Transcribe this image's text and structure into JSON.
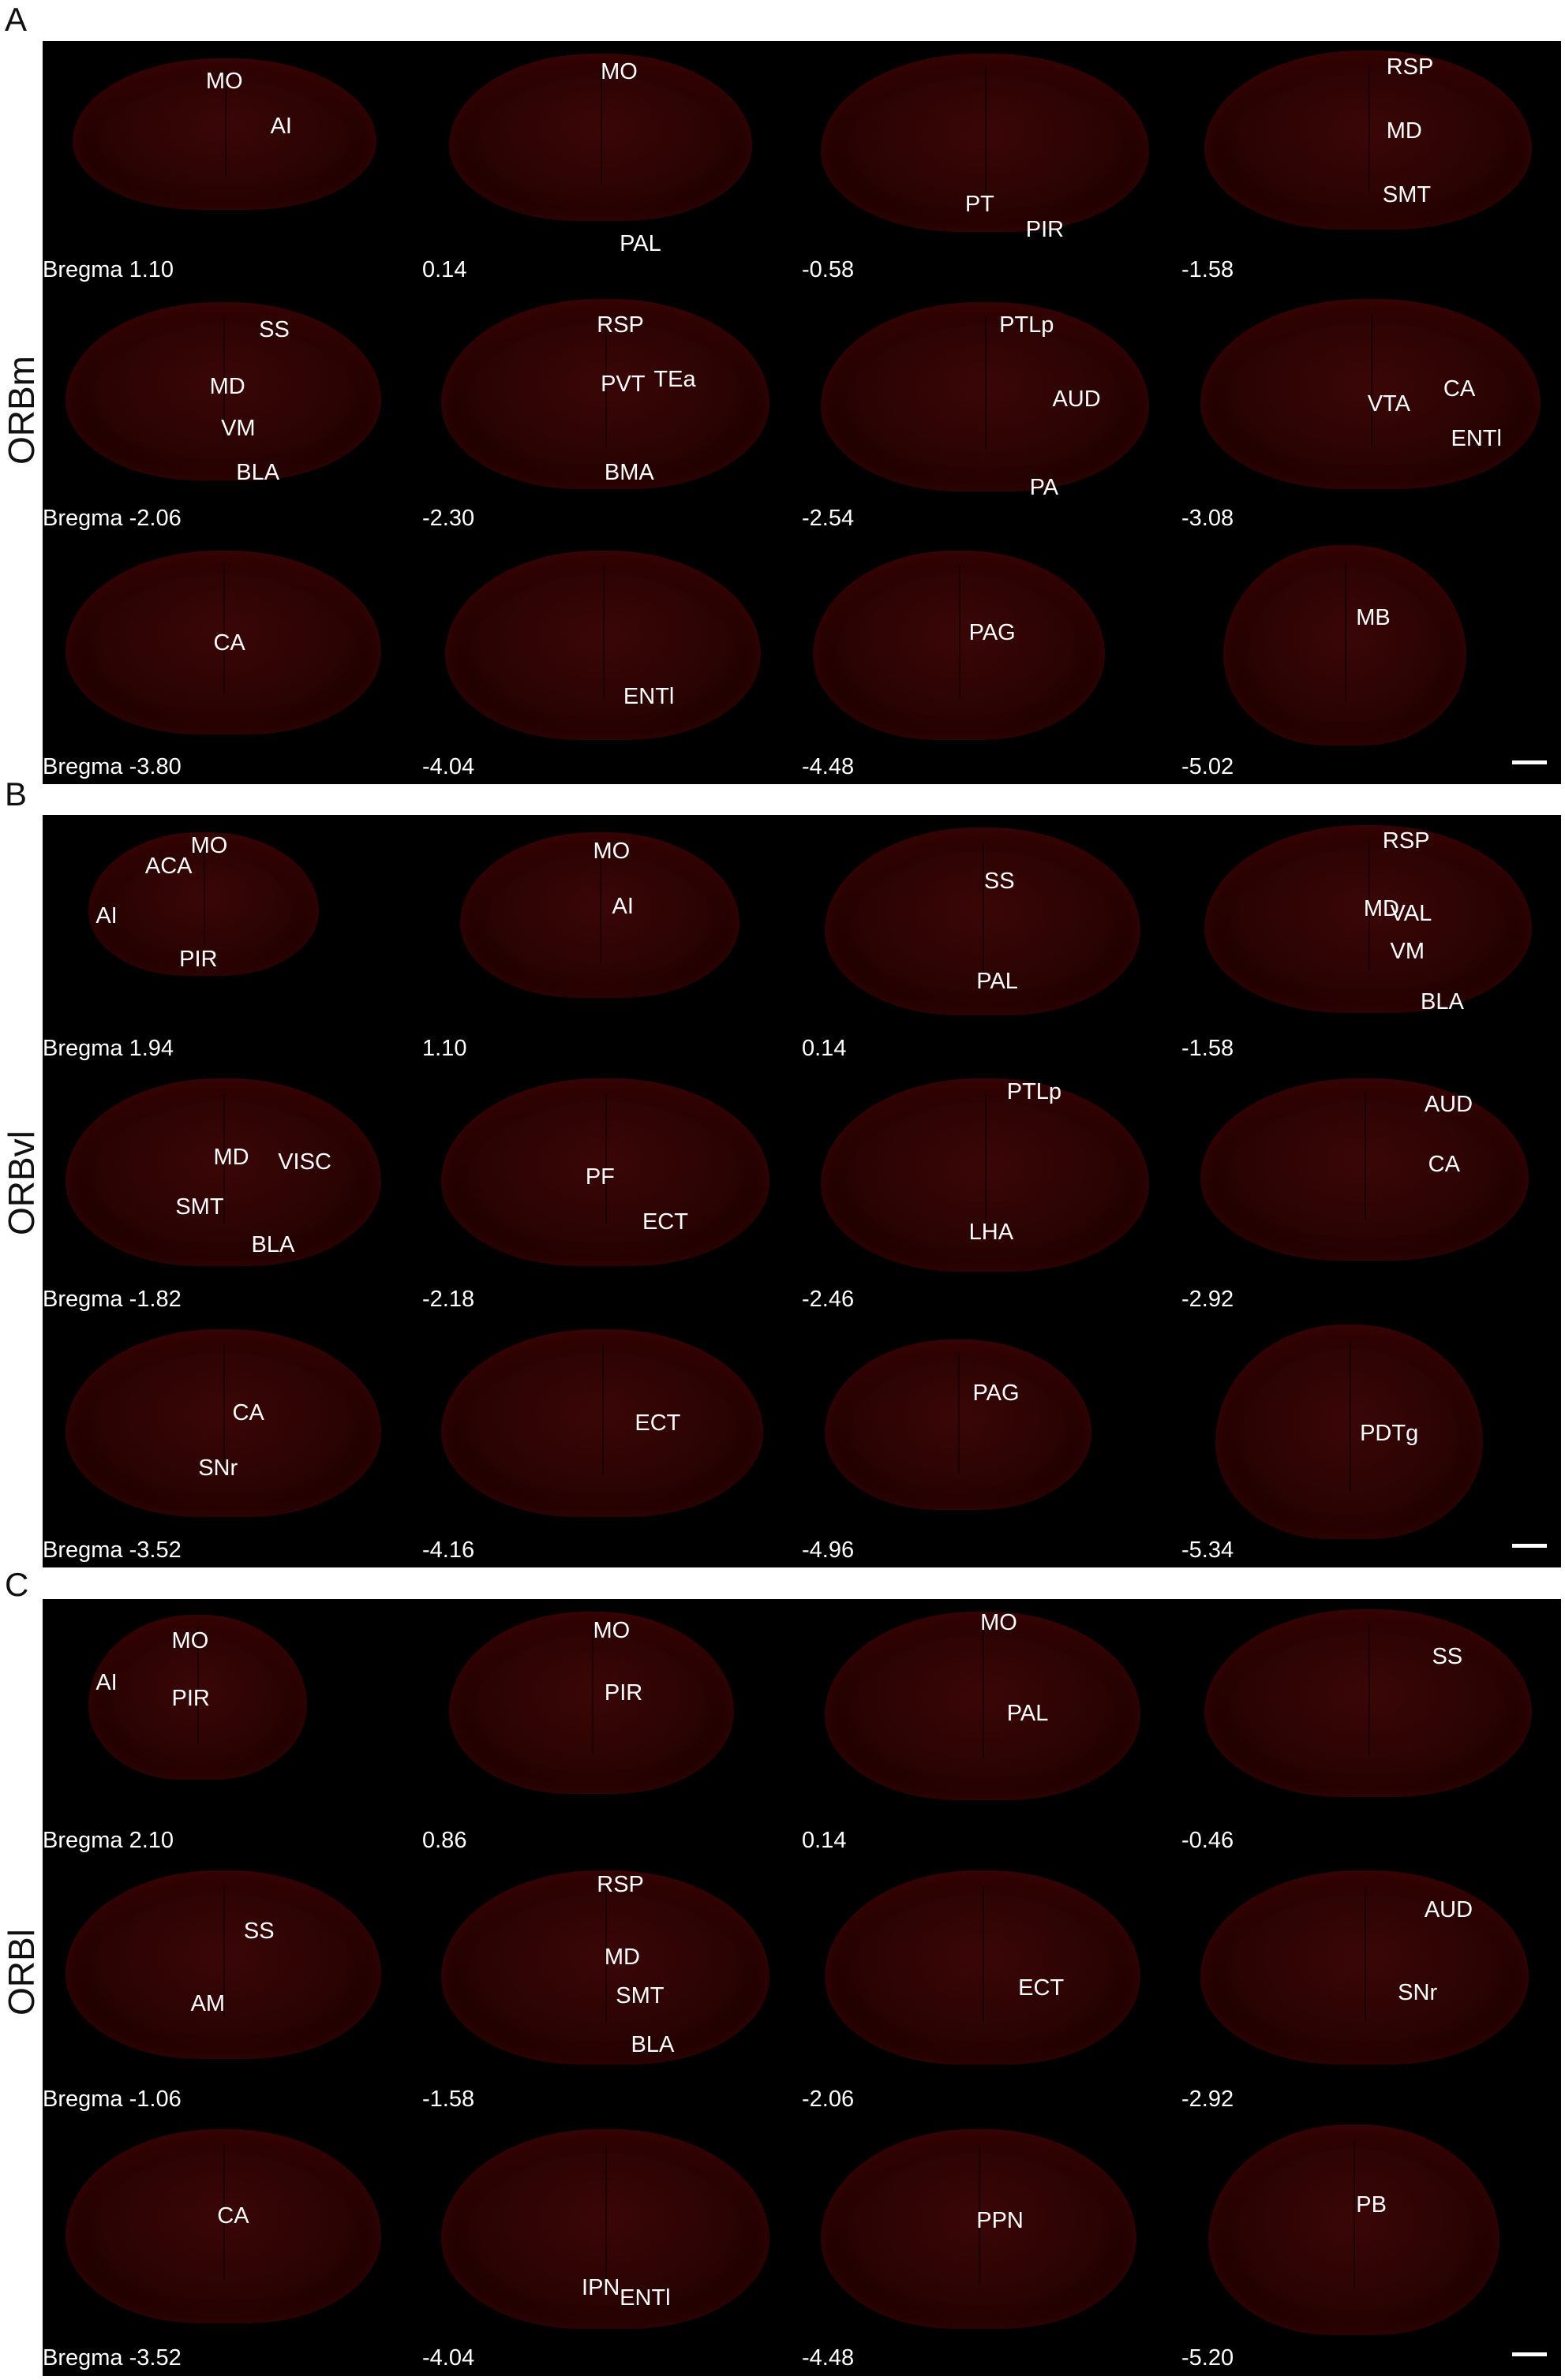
{
  "figure": {
    "panels": [
      {
        "letter": "A",
        "row_label": "ORBm",
        "sections": [
          {
            "coord": "Bregma 1.10",
            "regions": [
              "MO",
              "AI"
            ]
          },
          {
            "coord": "0.14",
            "regions": [
              "MO",
              "PAL"
            ]
          },
          {
            "coord": "-0.58",
            "regions": [
              "PT",
              "PIR"
            ]
          },
          {
            "coord": "-1.58",
            "regions": [
              "RSP",
              "MD",
              "SMT"
            ]
          },
          {
            "coord": "Bregma -2.06",
            "regions": [
              "SS",
              "MD",
              "VM",
              "BLA"
            ]
          },
          {
            "coord": "-2.30",
            "regions": [
              "RSP",
              "PVT",
              "TEa",
              "BMA"
            ]
          },
          {
            "coord": "-2.54",
            "regions": [
              "PTLp",
              "AUD",
              "PA"
            ]
          },
          {
            "coord": "-3.08",
            "regions": [
              "VTA",
              "CA",
              "ENTl"
            ]
          },
          {
            "coord": "Bregma -3.80",
            "regions": [
              "CA"
            ]
          },
          {
            "coord": "-4.04",
            "regions": [
              "ENTl"
            ]
          },
          {
            "coord": "-4.48",
            "regions": [
              "PAG"
            ]
          },
          {
            "coord": "-5.02",
            "regions": [
              "MB"
            ]
          }
        ]
      },
      {
        "letter": "B",
        "row_label": "ORBvl",
        "sections": [
          {
            "coord": "Bregma 1.94",
            "regions": [
              "MO",
              "ACA",
              "AI",
              "PIR"
            ]
          },
          {
            "coord": "1.10",
            "regions": [
              "MO",
              "AI"
            ]
          },
          {
            "coord": "0.14",
            "regions": [
              "SS",
              "PAL"
            ]
          },
          {
            "coord": "-1.58",
            "regions": [
              "RSP",
              "MD",
              "VAL",
              "VM",
              "BLA"
            ]
          },
          {
            "coord": "Bregma -1.82",
            "regions": [
              "MD",
              "VISC",
              "SMT",
              "BLA"
            ]
          },
          {
            "coord": "-2.18",
            "regions": [
              "PF",
              "ECT"
            ]
          },
          {
            "coord": "-2.46",
            "regions": [
              "PTLp",
              "LHA"
            ]
          },
          {
            "coord": "-2.92",
            "regions": [
              "AUD",
              "CA"
            ]
          },
          {
            "coord": "Bregma -3.52",
            "regions": [
              "CA",
              "SNr"
            ]
          },
          {
            "coord": "-4.16",
            "regions": [
              "ECT"
            ]
          },
          {
            "coord": "-4.96",
            "regions": [
              "PAG"
            ]
          },
          {
            "coord": "-5.34",
            "regions": [
              "PDTg"
            ]
          }
        ]
      },
      {
        "letter": "C",
        "row_label": "ORBl",
        "sections": [
          {
            "coord": "Bregma 2.10",
            "regions": [
              "MO",
              "AI",
              "PIR"
            ]
          },
          {
            "coord": "0.86",
            "regions": [
              "MO",
              "PIR"
            ]
          },
          {
            "coord": "0.14",
            "regions": [
              "MO",
              "PAL"
            ]
          },
          {
            "coord": "-0.46",
            "regions": [
              "SS"
            ]
          },
          {
            "coord": "Bregma -1.06",
            "regions": [
              "SS",
              "AM"
            ]
          },
          {
            "coord": "-1.58",
            "regions": [
              "RSP",
              "MD",
              "SMT",
              "BLA"
            ]
          },
          {
            "coord": "-2.06",
            "regions": [
              "ECT"
            ]
          },
          {
            "coord": "-2.92",
            "regions": [
              "AUD",
              "SNr"
            ]
          },
          {
            "coord": "Bregma -3.52",
            "regions": [
              "CA"
            ]
          },
          {
            "coord": "-4.04",
            "regions": [
              "IPN",
              "ENTl"
            ]
          },
          {
            "coord": "-4.48",
            "regions": [
              "PPN"
            ]
          },
          {
            "coord": "-5.20",
            "regions": [
              "PB"
            ]
          }
        ]
      }
    ],
    "colors": {
      "background": "#000000",
      "tissue": "#3a0606",
      "label": "#ffffff"
    }
  }
}
